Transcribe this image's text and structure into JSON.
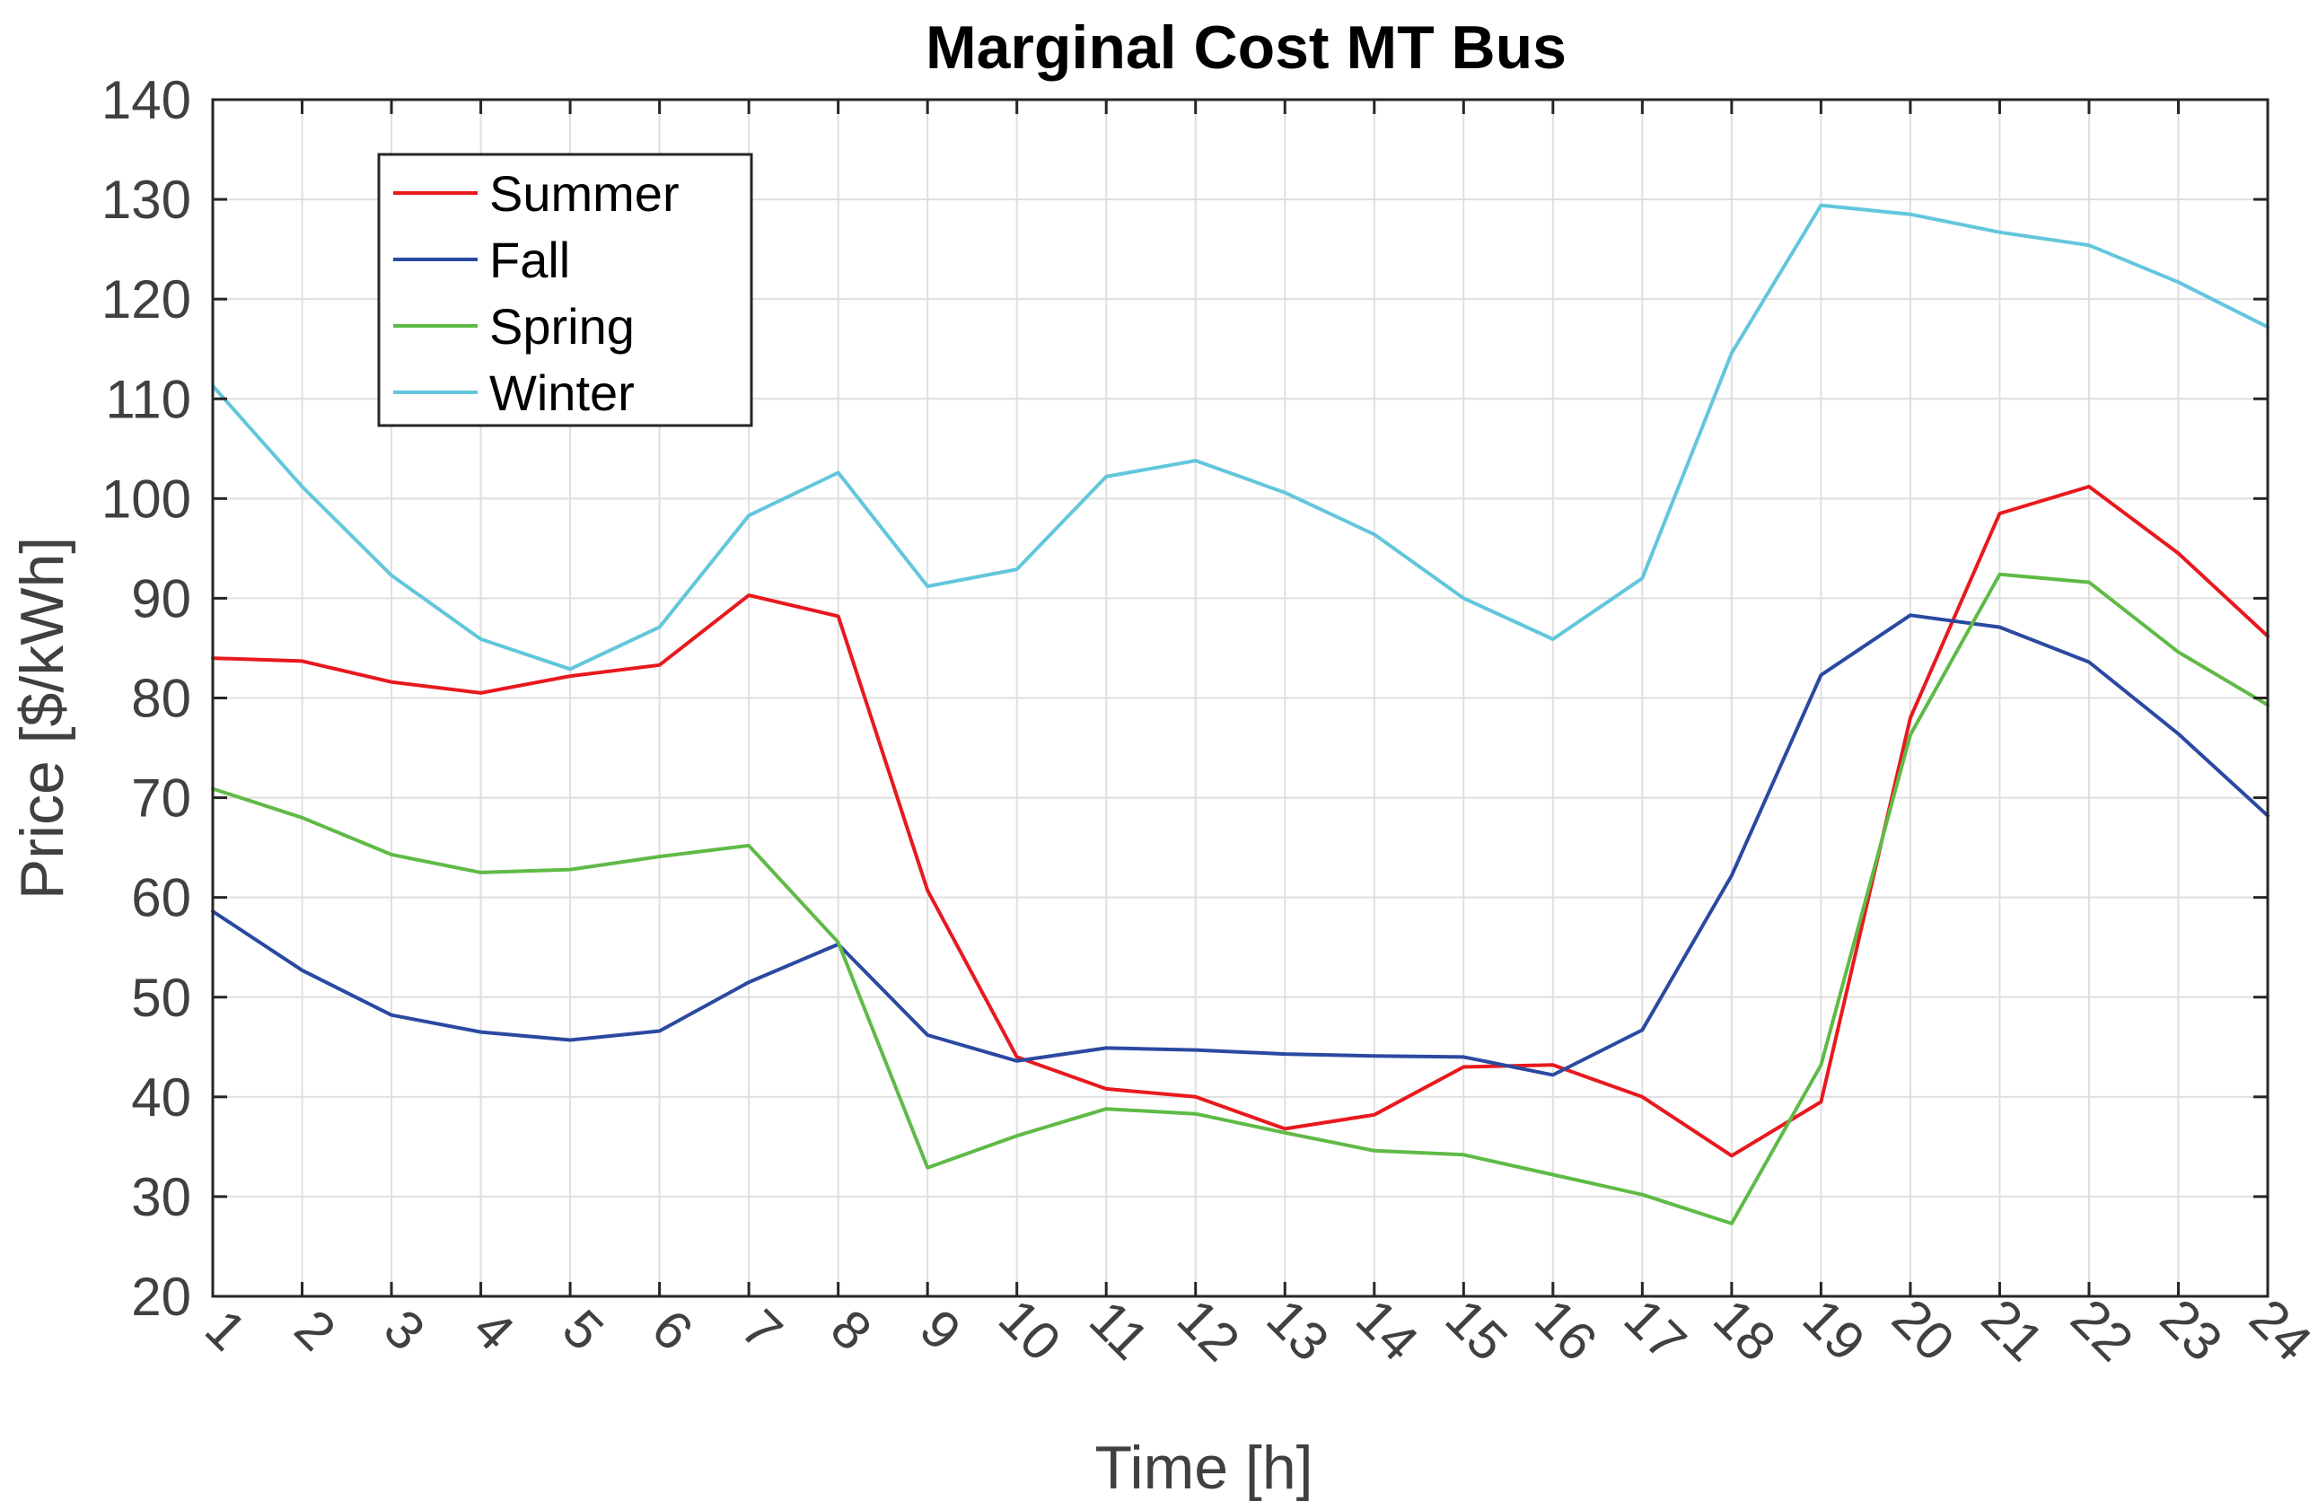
{
  "chart_data": {
    "type": "line",
    "title": "Marginal Cost MT Bus",
    "xlabel": "Time [h]",
    "ylabel": "Price [$/kWh]",
    "x": [
      1,
      2,
      3,
      4,
      5,
      6,
      7,
      8,
      9,
      10,
      11,
      12,
      13,
      14,
      15,
      16,
      17,
      18,
      19,
      20,
      21,
      22,
      23,
      24
    ],
    "xlim": [
      1,
      24
    ],
    "ylim": [
      20,
      140
    ],
    "xticks": [
      1,
      2,
      3,
      4,
      5,
      6,
      7,
      8,
      9,
      10,
      11,
      12,
      13,
      14,
      15,
      16,
      17,
      18,
      19,
      20,
      21,
      22,
      23,
      24
    ],
    "yticks": [
      20,
      30,
      40,
      50,
      60,
      70,
      80,
      90,
      100,
      110,
      120,
      130,
      140
    ],
    "grid": true,
    "legend_position": "top-left",
    "series": [
      {
        "name": "Summer",
        "color": "#e8191e",
        "values": [
          84.0,
          83.7,
          81.6,
          80.5,
          82.2,
          83.3,
          90.3,
          88.2,
          60.7,
          44.0,
          40.8,
          40.0,
          36.8,
          38.2,
          43.0,
          43.2,
          40.0,
          34.1,
          39.5,
          78.0,
          98.5,
          101.2,
          94.5,
          86.2
        ]
      },
      {
        "name": "Fall",
        "color": "#2a49a1",
        "values": [
          58.6,
          52.7,
          48.2,
          46.5,
          45.7,
          46.6,
          51.5,
          55.3,
          46.2,
          43.6,
          44.9,
          44.7,
          44.3,
          44.1,
          44.0,
          42.2,
          46.7,
          62.2,
          82.3,
          88.3,
          87.1,
          83.6,
          76.4,
          68.2
        ]
      },
      {
        "name": "Spring",
        "color": "#5fba46",
        "values": [
          70.9,
          68.0,
          64.3,
          62.5,
          62.8,
          64.1,
          65.2,
          55.5,
          32.9,
          36.1,
          38.8,
          38.3,
          36.4,
          34.6,
          34.2,
          32.2,
          30.2,
          27.3,
          43.2,
          76.3,
          92.4,
          91.6,
          84.6,
          79.3
        ]
      },
      {
        "name": "Winter",
        "color": "#62c6dc",
        "values": [
          111.3,
          101.2,
          92.3,
          85.9,
          82.9,
          87.1,
          98.3,
          102.6,
          91.2,
          92.9,
          102.2,
          103.8,
          100.6,
          96.4,
          90.0,
          85.9,
          92.0,
          114.6,
          129.4,
          128.5,
          126.7,
          125.4,
          121.7,
          117.2
        ]
      }
    ]
  }
}
